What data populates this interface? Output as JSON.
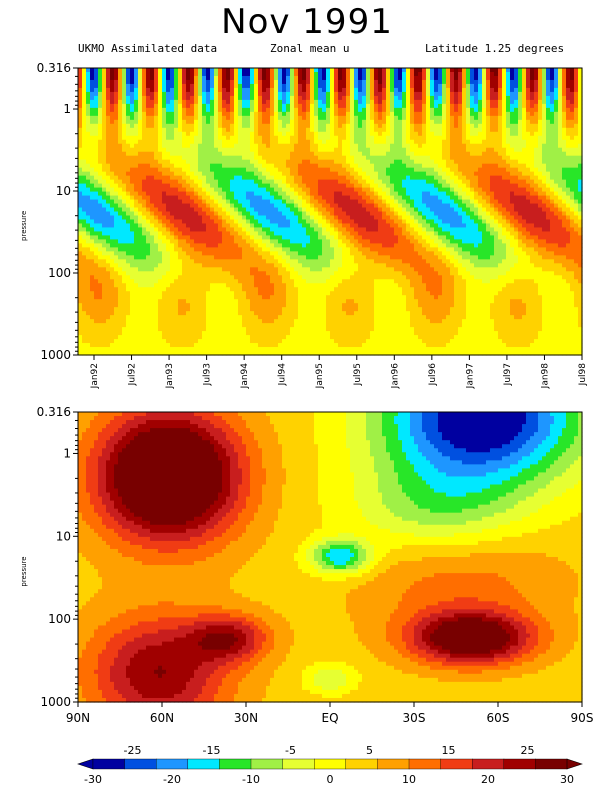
{
  "header": {
    "title": "Nov 1991",
    "subtitle_left": "UKMO Assimilated data",
    "subtitle_mid": "Zonal mean u",
    "subtitle_right": "Latitude 1.25 degrees"
  },
  "colors": {
    "scale": [
      "#0000a0",
      "#0050e0",
      "#1e96ff",
      "#00e8ff",
      "#28e628",
      "#a0f046",
      "#e6ff32",
      "#ffff00",
      "#ffd200",
      "#ffa000",
      "#ff6e00",
      "#f03c14",
      "#c81e1e",
      "#a00000",
      "#780000"
    ],
    "contour_line": "#000000"
  },
  "chart_data": [
    {
      "type": "heatmap",
      "panel": "time-height",
      "x_tick_labels": [
        "Jan92",
        "Jul92",
        "Jan93",
        "Jul93",
        "Jan94",
        "Jul94",
        "Jan95",
        "Jul95",
        "Jan96",
        "Jul96",
        "Jan97",
        "Jul97",
        "Jan98",
        "Jul98"
      ],
      "y_tick_labels": [
        "0.316",
        "1",
        "10",
        "100",
        "1000"
      ],
      "y_scale": "log",
      "ylim": [
        1000,
        0.316
      ],
      "ylabel": "pressure",
      "z_units_range": [
        -30,
        30
      ]
    },
    {
      "type": "heatmap",
      "panel": "latitude-height",
      "x_tick_labels": [
        "90N",
        "60N",
        "30N",
        "EQ",
        "30S",
        "60S",
        "90S"
      ],
      "y_tick_labels": [
        "0.316",
        "1",
        "10",
        "100",
        "1000"
      ],
      "y_scale": "log",
      "ylim": [
        1000,
        0.316
      ],
      "ylabel": "pressure",
      "z_units_range": [
        -30,
        30
      ]
    },
    {
      "type": "colorbar",
      "upper_labels": [
        "-25",
        "-15",
        "-5",
        "5",
        "15",
        "25"
      ],
      "lower_labels": [
        "-30",
        "-20",
        "-10",
        "0",
        "10",
        "20",
        "30"
      ],
      "range": [
        -30,
        30
      ]
    }
  ]
}
